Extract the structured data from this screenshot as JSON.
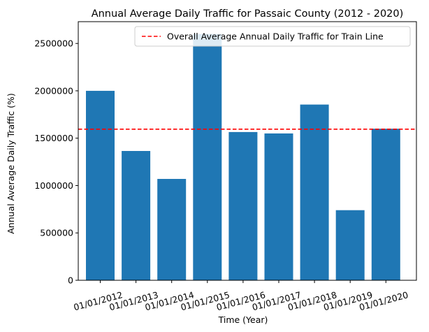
{
  "chart_data": {
    "type": "bar",
    "title": "Annual Average Daily Traffic for Passaic County (2012 - 2020)",
    "xlabel": "Time (Year)",
    "ylabel": "Annual Average Daily Traffic (%)",
    "categories": [
      "01/01/2012",
      "01/01/2013",
      "01/01/2014",
      "01/01/2015",
      "01/01/2016",
      "01/01/2017",
      "01/01/2018",
      "01/01/2019",
      "01/01/2020"
    ],
    "values": [
      2000000,
      1365000,
      1070000,
      2600000,
      1565000,
      1550000,
      1855000,
      740000,
      1600000
    ],
    "ylim": [
      0,
      2730000
    ],
    "yticks": [
      0,
      500000,
      1000000,
      1500000,
      2000000,
      2500000
    ],
    "ytick_labels": [
      "0",
      "500000",
      "1000000",
      "1500000",
      "2000000",
      "2500000"
    ],
    "bar_color": "#1f77b4",
    "reference_line": {
      "name": "Overall Average Annual Daily Traffic for Train Line",
      "value": 1595000,
      "color": "#ff0000",
      "style": "dashed"
    },
    "legend_placement": "top-right",
    "grid": false
  }
}
